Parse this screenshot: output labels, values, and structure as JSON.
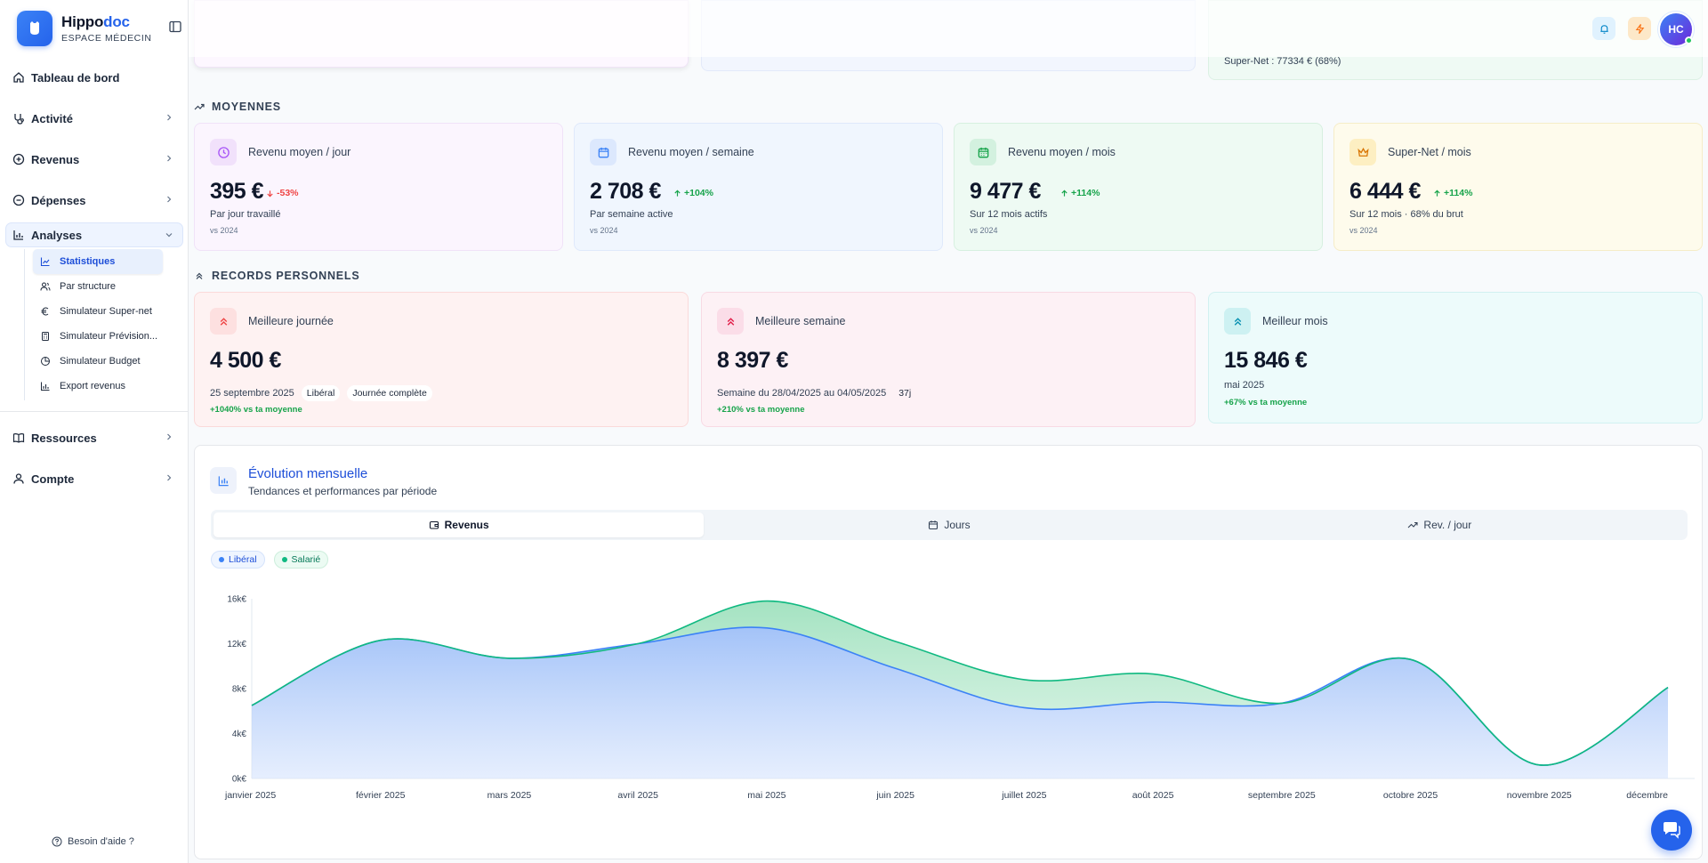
{
  "brand": {
    "name_a": "Hippo",
    "name_b": "doc",
    "subtitle": "ESPACE MÉDECIN"
  },
  "nav": {
    "dashboard": "Tableau de bord",
    "activity": "Activité",
    "revenue": "Revenus",
    "expenses": "Dépenses",
    "analyses": "Analyses",
    "sub": [
      "Statistiques",
      "Par structure",
      "Simulateur Super-net",
      "Simulateur Prévision...",
      "Simulateur Budget",
      "Export revenus"
    ],
    "resources": "Ressources",
    "account": "Compte",
    "help": "Besoin d'aide ?"
  },
  "topbar": {
    "avatar_initials": "HC",
    "partial_text": "Super-Net : 77334 € (68%)"
  },
  "averages": {
    "title": "MOYENNES",
    "cards": [
      {
        "label": "Revenu moyen / jour",
        "value": "395 €",
        "delta": "-53%",
        "sub": "Par jour travaillé",
        "foot": "vs 2024"
      },
      {
        "label": "Revenu moyen / semaine",
        "value": "2 708 €",
        "delta": "+104%",
        "sub": "Par semaine active",
        "foot": "vs 2024"
      },
      {
        "label": "Revenu moyen / mois",
        "value": "9 477 €",
        "delta": "+114%",
        "sub": "Sur 12 mois actifs",
        "foot": "vs 2024"
      },
      {
        "label": "Super-Net / mois",
        "value": "6 444 €",
        "delta": "+114%",
        "sub": "Sur 12 mois · 68% du brut",
        "foot": "vs 2024"
      }
    ]
  },
  "records": {
    "title": "RECORDS PERSONNELS",
    "cards": [
      {
        "label": "Meilleure journée",
        "value": "4 500 €",
        "sub": "25 septembre 2025",
        "pill1": "Libéral",
        "pill2": "Journée complète",
        "foot": "+1040% vs ta moyenne"
      },
      {
        "label": "Meilleure semaine",
        "value": "8 397 €",
        "sub": "Semaine du 28/04/2025 au 04/05/2025",
        "pill1": "37j",
        "foot": "+210% vs ta moyenne"
      },
      {
        "label": "Meilleur mois",
        "value": "15 846 €",
        "sub": "mai 2025",
        "foot": "+67% vs ta moyenne"
      }
    ]
  },
  "chart": {
    "title": "Évolution mensuelle",
    "subtitle": "Tendances et performances par période",
    "tabs": [
      "Revenus",
      "Jours",
      "Rev. / jour"
    ],
    "legend": [
      "Libéral",
      "Salarié"
    ]
  },
  "chart_data": {
    "type": "area",
    "categories": [
      "janvier 2025",
      "février 2025",
      "mars 2025",
      "avril 2025",
      "mai 2025",
      "juin 2025",
      "juillet 2025",
      "août 2025",
      "septembre 2025",
      "octobre 2025",
      "novembre 2025",
      "décembre"
    ],
    "series": [
      {
        "name": "Libéral",
        "values": [
          6500,
          12300,
          10700,
          12000,
          13400,
          9800,
          6300,
          6800,
          6700,
          10600,
          1200,
          8100
        ]
      },
      {
        "name": "Salarié",
        "values": [
          0,
          0,
          0,
          0,
          2400,
          2400,
          2500,
          2500,
          0,
          0,
          0,
          0
        ]
      }
    ],
    "stacked": true,
    "yticks": [
      "0k€",
      "4k€",
      "8k€",
      "12k€",
      "16k€"
    ],
    "ylim": [
      0,
      16000
    ],
    "colors": {
      "liberal": "#3b82f6",
      "salarie": "#10b981"
    }
  }
}
